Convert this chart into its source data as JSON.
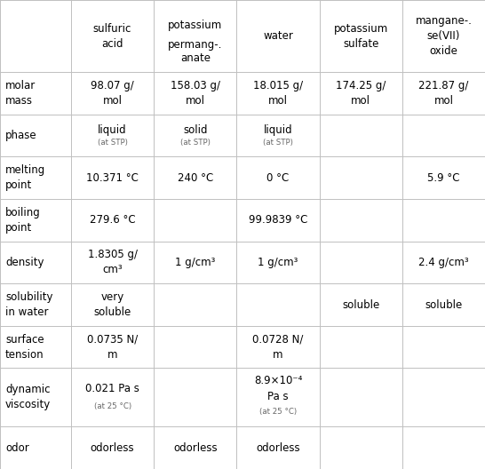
{
  "col_headers": [
    "",
    "sulfuric\nacid",
    "potassium\n\npermang-.\nanate",
    "water",
    "potassium\nsulfate",
    "mangane-.\nse(VII)\noxide"
  ],
  "row_headers": [
    "molar\nmass",
    "phase",
    "melting\npoint",
    "boiling\npoint",
    "density",
    "solubility\nin water",
    "surface\ntension",
    "dynamic\nviscosity",
    "odor"
  ],
  "cells": [
    [
      "98.07 g/\nmol",
      "158.03 g/\nmol",
      "18.015 g/\nmol",
      "174.25 g/\nmol",
      "221.87 g/\nmol"
    ],
    [
      "liquid\n(at STP)",
      "solid\n(at STP)",
      "liquid\n(at STP)",
      "",
      ""
    ],
    [
      "10.371 °C",
      "240 °C",
      "0 °C",
      "",
      "5.9 °C"
    ],
    [
      "279.6 °C",
      "",
      "99.9839 °C",
      "",
      ""
    ],
    [
      "1.8305 g/\ncm³",
      "1 g/cm³",
      "1 g/cm³",
      "",
      "2.4 g/cm³"
    ],
    [
      "very\nsoluble",
      "",
      "",
      "soluble",
      "soluble"
    ],
    [
      "0.0735 N/\nm",
      "",
      "0.0728 N/\nm",
      "",
      ""
    ],
    [
      "0.021 Pa s\n(at 25 °C)",
      "",
      "8.9×10⁻⁴\nPa s\n(at 25 °C)",
      "",
      ""
    ],
    [
      "odorless",
      "odorless",
      "odorless",
      "",
      ""
    ]
  ],
  "bg_color": "#ffffff",
  "line_color": "#c0c0c0",
  "text_color": "#000000",
  "small_text_color": "#666666"
}
